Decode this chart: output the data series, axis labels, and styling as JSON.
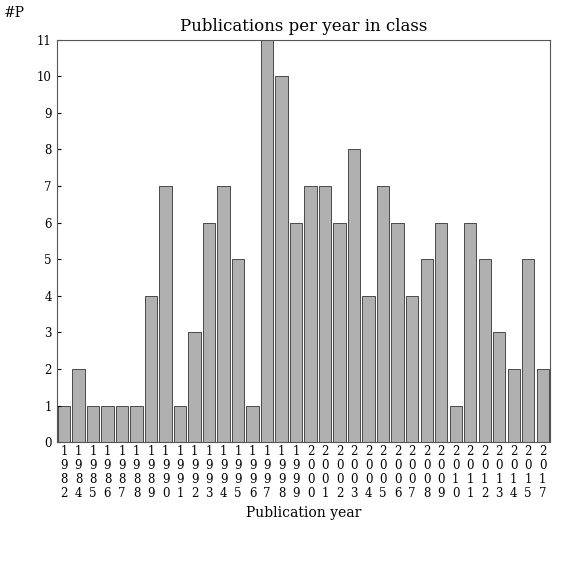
{
  "years": [
    "1982",
    "1984",
    "1985",
    "1986",
    "1987",
    "1988",
    "1989",
    "1990",
    "1991",
    "1992",
    "1993",
    "1994",
    "1995",
    "1996",
    "1997",
    "1998",
    "1999",
    "2000",
    "2001",
    "2002",
    "2003",
    "2004",
    "2005",
    "2006",
    "2007",
    "2008",
    "2009",
    "2010",
    "2011",
    "2012",
    "2013",
    "2014",
    "2015",
    "2017"
  ],
  "values": [
    1,
    2,
    1,
    1,
    1,
    1,
    4,
    7,
    1,
    3,
    6,
    7,
    5,
    1,
    11,
    10,
    6,
    7,
    7,
    6,
    8,
    4,
    7,
    6,
    4,
    5,
    6,
    1,
    6,
    5,
    3,
    2,
    5,
    2
  ],
  "bar_color": "#b0b0b0",
  "bar_edgecolor": "#333333",
  "title": "Publications per year in class",
  "xlabel": "Publication year",
  "ylabel_annotation": "#P",
  "ylim": [
    0,
    11
  ],
  "yticks": [
    0,
    1,
    2,
    3,
    4,
    5,
    6,
    7,
    8,
    9,
    10,
    11
  ],
  "title_fontsize": 12,
  "label_fontsize": 10,
  "tick_fontsize": 8.5,
  "annotation_fontsize": 10,
  "bg_color": "#ffffff"
}
